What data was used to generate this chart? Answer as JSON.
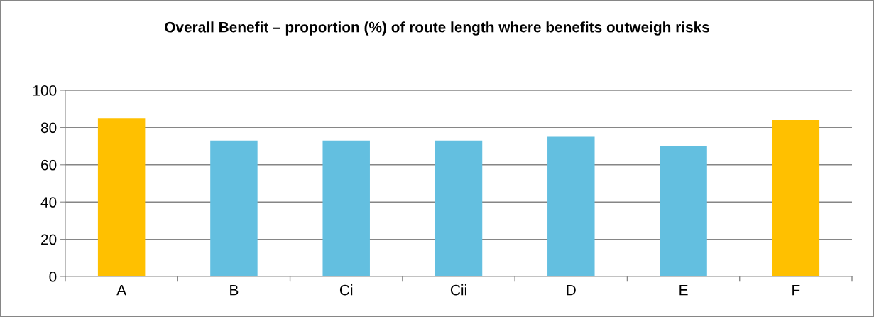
{
  "chart_data": {
    "type": "bar",
    "title": "Overall Benefit – proportion (%) of route length where benefits outweigh risks",
    "categories": [
      "A",
      "B",
      "Ci",
      "Cii",
      "D",
      "E",
      "F"
    ],
    "values": [
      85,
      73,
      73,
      73,
      75,
      70,
      84
    ],
    "colors": [
      "#ffc000",
      "#63bfe0",
      "#63bfe0",
      "#63bfe0",
      "#63bfe0",
      "#63bfe0",
      "#ffc000"
    ],
    "ylim": [
      0,
      100
    ],
    "yticks": [
      0,
      20,
      40,
      60,
      80,
      100
    ],
    "grid": "y"
  }
}
